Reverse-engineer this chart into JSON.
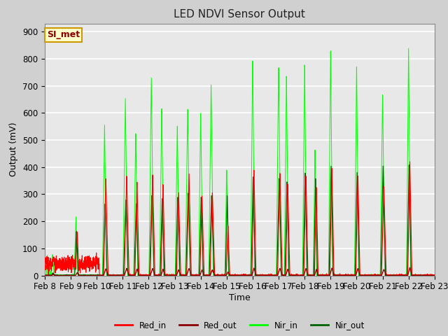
{
  "title": "LED NDVI Sensor Output",
  "xlabel": "Time",
  "ylabel": "Output (mV)",
  "ylim": [
    0,
    930
  ],
  "fig_bg": "#d0d0d0",
  "plot_bg": "#e8e8e8",
  "grid_color": "#ffffff",
  "annotation_text": "SI_met",
  "annotation_bg": "#ffffcc",
  "annotation_border": "#cc9900",
  "colors": {
    "Red_in": "#ff0000",
    "Red_out": "#8b0000",
    "Nir_in": "#00ff00",
    "Nir_out": "#006400"
  },
  "x_tick_labels": [
    "Feb 8",
    "Feb 9",
    "Feb 10",
    "Feb 11",
    "Feb 12",
    "Feb 13",
    "Feb 14",
    "Feb 15",
    "Feb 16",
    "Feb 17",
    "Feb 18",
    "Feb 19",
    "Feb 20",
    "Feb 21",
    "Feb 22",
    "Feb 23"
  ],
  "yticks": [
    0,
    100,
    200,
    300,
    400,
    500,
    600,
    700,
    800,
    900
  ]
}
